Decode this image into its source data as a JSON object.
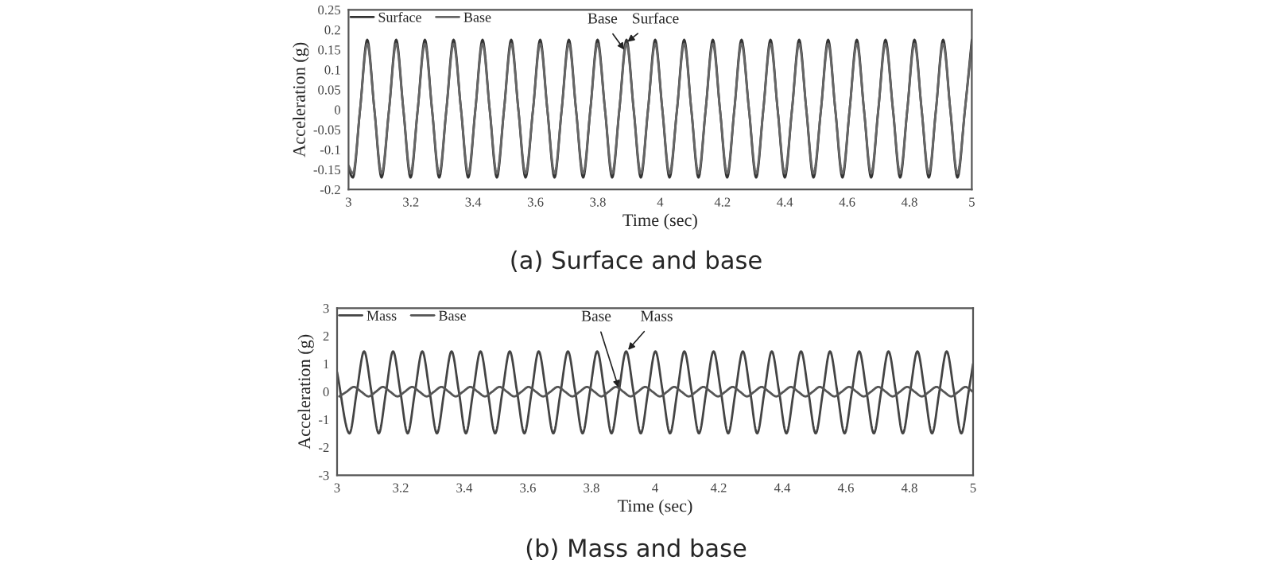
{
  "chart_data": [
    {
      "type": "line",
      "title": "(a) Surface and base",
      "xlabel": "Time (sec)",
      "ylabel": "Acceleration (g)",
      "legend": "top left",
      "grid": false,
      "marker": "none",
      "line_style": "solid",
      "xlim": [
        3,
        5
      ],
      "xticks": [
        3,
        3.2,
        3.4,
        3.6,
        3.8,
        4,
        4.2,
        4.4,
        4.6,
        4.8,
        5
      ],
      "ylim": [
        -0.2,
        0.25
      ],
      "yticks": [
        -0.2,
        -0.15,
        -0.1,
        -0.05,
        0,
        0.05,
        0.1,
        0.15,
        0.2,
        0.25
      ],
      "x": [
        3.0,
        3.014,
        3.037,
        3.06,
        3.083,
        3.106,
        3.13,
        3.153,
        3.176,
        3.199,
        3.222,
        3.245,
        3.268,
        3.291,
        3.314,
        3.337,
        3.361,
        3.384,
        3.407,
        3.43,
        3.453,
        3.476,
        3.499,
        3.522,
        3.545,
        3.568,
        3.592,
        3.615,
        3.638,
        3.661,
        3.684,
        3.707,
        3.73,
        3.753,
        3.776,
        3.799,
        3.823,
        3.846,
        3.869,
        3.892,
        3.915,
        3.938,
        3.961,
        3.984,
        4.007,
        4.03,
        4.054,
        4.077,
        4.1,
        4.123,
        4.146,
        4.169,
        4.192,
        4.215,
        4.238,
        4.261,
        4.285,
        4.308,
        4.331,
        4.354,
        4.377,
        4.4,
        4.423,
        4.446,
        4.469,
        4.492,
        4.516,
        4.539,
        4.562,
        4.585,
        4.608,
        4.631,
        4.654,
        4.677,
        4.7,
        4.723,
        4.747,
        4.77,
        4.793,
        4.816,
        4.839,
        4.862,
        4.885,
        4.908,
        4.931,
        4.954,
        4.978,
        5.0
      ],
      "series": [
        {
          "name": "Surface",
          "color": "#333333",
          "values": [
            -0.15,
            -0.17,
            0,
            0.175,
            0,
            -0.17,
            0,
            0.175,
            0,
            -0.17,
            0,
            0.175,
            0,
            -0.17,
            0,
            0.175,
            0,
            -0.17,
            0,
            0.175,
            0,
            -0.17,
            0,
            0.175,
            0,
            -0.17,
            0,
            0.175,
            0,
            -0.17,
            0,
            0.175,
            0,
            -0.17,
            0,
            0.175,
            0,
            -0.17,
            0,
            0.175,
            0,
            -0.17,
            0,
            0.175,
            0,
            -0.17,
            0,
            0.175,
            0,
            -0.17,
            0,
            0.175,
            0,
            -0.17,
            0,
            0.175,
            0,
            -0.17,
            0,
            0.175,
            0,
            -0.17,
            0,
            0.175,
            0,
            -0.17,
            0,
            0.175,
            0,
            -0.17,
            0,
            0.175,
            0,
            -0.17,
            0,
            0.175,
            0,
            -0.17,
            0,
            0.175,
            0,
            -0.17,
            0,
            0.175,
            0,
            -0.17,
            0,
            0.175
          ]
        },
        {
          "name": "Base",
          "color": "#666666",
          "values": [
            -0.14,
            -0.16,
            0,
            0.165,
            0,
            -0.16,
            0,
            0.165,
            0,
            -0.16,
            0,
            0.165,
            0,
            -0.16,
            0,
            0.165,
            0,
            -0.16,
            0,
            0.165,
            0,
            -0.16,
            0,
            0.165,
            0,
            -0.16,
            0,
            0.165,
            0,
            -0.16,
            0,
            0.165,
            0,
            -0.16,
            0,
            0.165,
            0,
            -0.16,
            0,
            0.165,
            0,
            -0.16,
            0,
            0.165,
            0,
            -0.16,
            0,
            0.165,
            0,
            -0.16,
            0,
            0.165,
            0,
            -0.16,
            0,
            0.165,
            0,
            -0.16,
            0,
            0.165,
            0,
            -0.16,
            0,
            0.165,
            0,
            -0.16,
            0,
            0.165,
            0,
            -0.16,
            0,
            0.165,
            0,
            -0.16,
            0,
            0.165,
            0,
            -0.16,
            0,
            0.165,
            0,
            -0.16,
            0,
            0.165,
            0,
            -0.16,
            0,
            0.165
          ]
        }
      ],
      "annotations": [
        {
          "text": "Base",
          "x": 3.885,
          "y": 0.15
        },
        {
          "text": "Surface",
          "x": 3.895,
          "y": 0.17
        }
      ]
    },
    {
      "type": "line",
      "title": "(b) Mass and base",
      "xlabel": "Time (sec)",
      "ylabel": "Acceleration (g)",
      "legend": "top left",
      "grid": false,
      "marker": "none",
      "line_style": "solid",
      "xlim": [
        3,
        5
      ],
      "xticks": [
        3,
        3.2,
        3.4,
        3.6,
        3.8,
        4,
        4.2,
        4.4,
        4.6,
        4.8,
        5
      ],
      "ylim": [
        -3,
        3
      ],
      "yticks": [
        -3,
        -2,
        -1,
        0,
        1,
        2,
        3
      ],
      "series": [
        {
          "name": "Mass",
          "color": "#444444",
          "x": [
            3.0,
            3.039,
            3.062,
            3.085,
            3.108,
            3.131,
            3.154,
            3.176,
            3.199,
            3.222,
            3.245,
            3.268,
            3.291,
            3.314,
            3.337,
            3.36,
            3.383,
            3.405,
            3.428,
            3.451,
            3.474,
            3.497,
            3.52,
            3.543,
            3.566,
            3.589,
            3.612,
            3.634,
            3.657,
            3.68,
            3.703,
            3.726,
            3.749,
            3.772,
            3.795,
            3.818,
            3.841,
            3.863,
            3.886,
            3.909,
            3.932,
            3.955,
            3.978,
            4.001,
            4.024,
            4.047,
            4.07,
            4.092,
            4.115,
            4.138,
            4.161,
            4.184,
            4.207,
            4.23,
            4.253,
            4.276,
            4.299,
            4.321,
            4.344,
            4.367,
            4.39,
            4.413,
            4.436,
            4.459,
            4.482,
            4.505,
            4.528,
            4.55,
            4.573,
            4.596,
            4.619,
            4.642,
            4.665,
            4.688,
            4.711,
            4.734,
            4.757,
            4.779,
            4.802,
            4.825,
            4.848,
            4.871,
            4.894,
            4.917,
            4.94,
            4.963,
            4.986,
            5.0
          ],
          "values": [
            0.7,
            -1.5,
            0,
            1.45,
            0,
            -1.5,
            0,
            1.45,
            0,
            -1.5,
            0,
            1.45,
            0,
            -1.5,
            0,
            1.45,
            0,
            -1.5,
            0,
            1.45,
            0,
            -1.5,
            0,
            1.45,
            0,
            -1.5,
            0,
            1.45,
            0,
            -1.5,
            0,
            1.45,
            0,
            -1.5,
            0,
            1.45,
            0,
            -1.5,
            0,
            1.45,
            0,
            -1.5,
            0,
            1.45,
            0,
            -1.5,
            0,
            1.45,
            0,
            -1.5,
            0,
            1.45,
            0,
            -1.5,
            0,
            1.45,
            0,
            -1.5,
            0,
            1.45,
            0,
            -1.5,
            0,
            1.45,
            0,
            -1.5,
            0,
            1.45,
            0,
            -1.5,
            0,
            1.45,
            0,
            -1.5,
            0,
            1.45,
            0,
            -1.5,
            0,
            1.45,
            0,
            -1.5,
            0,
            1.45,
            0,
            -1.5,
            0,
            1.0
          ]
        },
        {
          "name": "Base",
          "color": "#555555",
          "x": [
            3.007,
            3.03,
            3.053,
            3.076,
            3.099,
            3.122,
            3.144,
            3.167,
            3.19,
            3.213,
            3.236,
            3.259,
            3.282,
            3.305,
            3.328,
            3.351,
            3.373,
            3.396,
            3.419,
            3.442,
            3.465,
            3.488,
            3.511,
            3.534,
            3.557,
            3.58,
            3.602,
            3.625,
            3.648,
            3.671,
            3.694,
            3.717,
            3.74,
            3.763,
            3.786,
            3.809,
            3.831,
            3.854,
            3.877,
            3.9,
            3.923,
            3.946,
            3.969,
            3.992,
            4.015,
            4.038,
            4.06,
            4.083,
            4.106,
            4.129,
            4.152,
            4.175,
            4.198,
            4.221,
            4.244,
            4.267,
            4.289,
            4.312,
            4.335,
            4.358,
            4.381,
            4.404,
            4.427,
            4.45,
            4.473,
            4.496,
            4.518,
            4.541,
            4.564,
            4.587,
            4.61,
            4.633,
            4.656,
            4.679,
            4.702,
            4.725,
            4.747,
            4.77,
            4.793,
            4.816,
            4.839,
            4.862,
            4.885,
            4.908,
            4.931,
            4.954,
            4.976,
            4.999
          ],
          "values": [
            -0.17,
            0,
            0.17,
            0,
            -0.17,
            0,
            0.17,
            0,
            -0.17,
            0,
            0.17,
            0,
            -0.17,
            0,
            0.17,
            0,
            -0.17,
            0,
            0.17,
            0,
            -0.17,
            0,
            0.17,
            0,
            -0.17,
            0,
            0.17,
            0,
            -0.17,
            0,
            0.17,
            0,
            -0.17,
            0,
            0.17,
            0,
            -0.17,
            0,
            0.17,
            0,
            -0.17,
            0,
            0.17,
            0,
            -0.17,
            0,
            0.17,
            0,
            -0.17,
            0,
            0.17,
            0,
            -0.17,
            0,
            0.17,
            0,
            -0.17,
            0,
            0.17,
            0,
            -0.17,
            0,
            0.17,
            0,
            -0.17,
            0,
            0.17,
            0,
            -0.17,
            0,
            0.17,
            0,
            -0.17,
            0,
            0.17,
            0,
            -0.17,
            0,
            0.17,
            0,
            -0.17,
            0,
            0.17,
            0,
            -0.17,
            0,
            0.17,
            0
          ]
        }
      ],
      "annotations": [
        {
          "text": "Base",
          "x": 3.885,
          "y": 0.15
        },
        {
          "text": "Mass",
          "x": 3.915,
          "y": 1.5
        }
      ]
    }
  ]
}
